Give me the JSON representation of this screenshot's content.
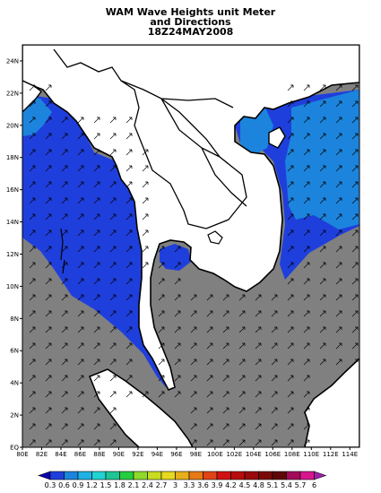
{
  "title": {
    "line1": "WAM Wave Heights unit Meter",
    "line2": "and Directions",
    "line3": "18Z24MAY2008"
  },
  "map": {
    "lon_range": [
      80,
      115
    ],
    "lat_range": [
      0,
      25
    ],
    "x_ticks": [
      "80E",
      "82E",
      "84E",
      "86E",
      "88E",
      "90E",
      "92E",
      "94E",
      "96E",
      "98E",
      "100E",
      "102E",
      "104E",
      "106E",
      "108E",
      "110E",
      "112E",
      "114E"
    ],
    "y_ticks": [
      "EQ",
      "2N",
      "4N",
      "6N",
      "8N",
      "10N",
      "12N",
      "14N",
      "16N",
      "18N",
      "20N",
      "22N",
      "24N"
    ],
    "colors": {
      "land": "#ffffff",
      "low_wave": "#808080",
      "band_0_6_0_9": "#1f3fdc",
      "band_0_9_1_2": "#1c84dc",
      "coast": "#000000"
    },
    "arrow_direction": "northeast"
  },
  "colorbar": {
    "labels": [
      "0.3",
      "0.6",
      "0.9",
      "1.2",
      "1.5",
      "1.8",
      "2.1",
      "2.4",
      "2.7",
      "3",
      "3.3",
      "3.6",
      "3.9",
      "4.2",
      "4.5",
      "4.8",
      "5.1",
      "5.4",
      "5.7",
      "6"
    ],
    "colors": [
      "#0a00b0",
      "#1f3fdc",
      "#1c84dc",
      "#1fb1e4",
      "#21d3d3",
      "#1fc596",
      "#25cd41",
      "#8fd92a",
      "#c8dc22",
      "#e6d81e",
      "#e6af1b",
      "#e57a16",
      "#e04415",
      "#d21212",
      "#b80c0c",
      "#990a0a",
      "#7a0808",
      "#5e0707",
      "#a30a5a",
      "#d8168c",
      "#9e1ea8"
    ]
  }
}
